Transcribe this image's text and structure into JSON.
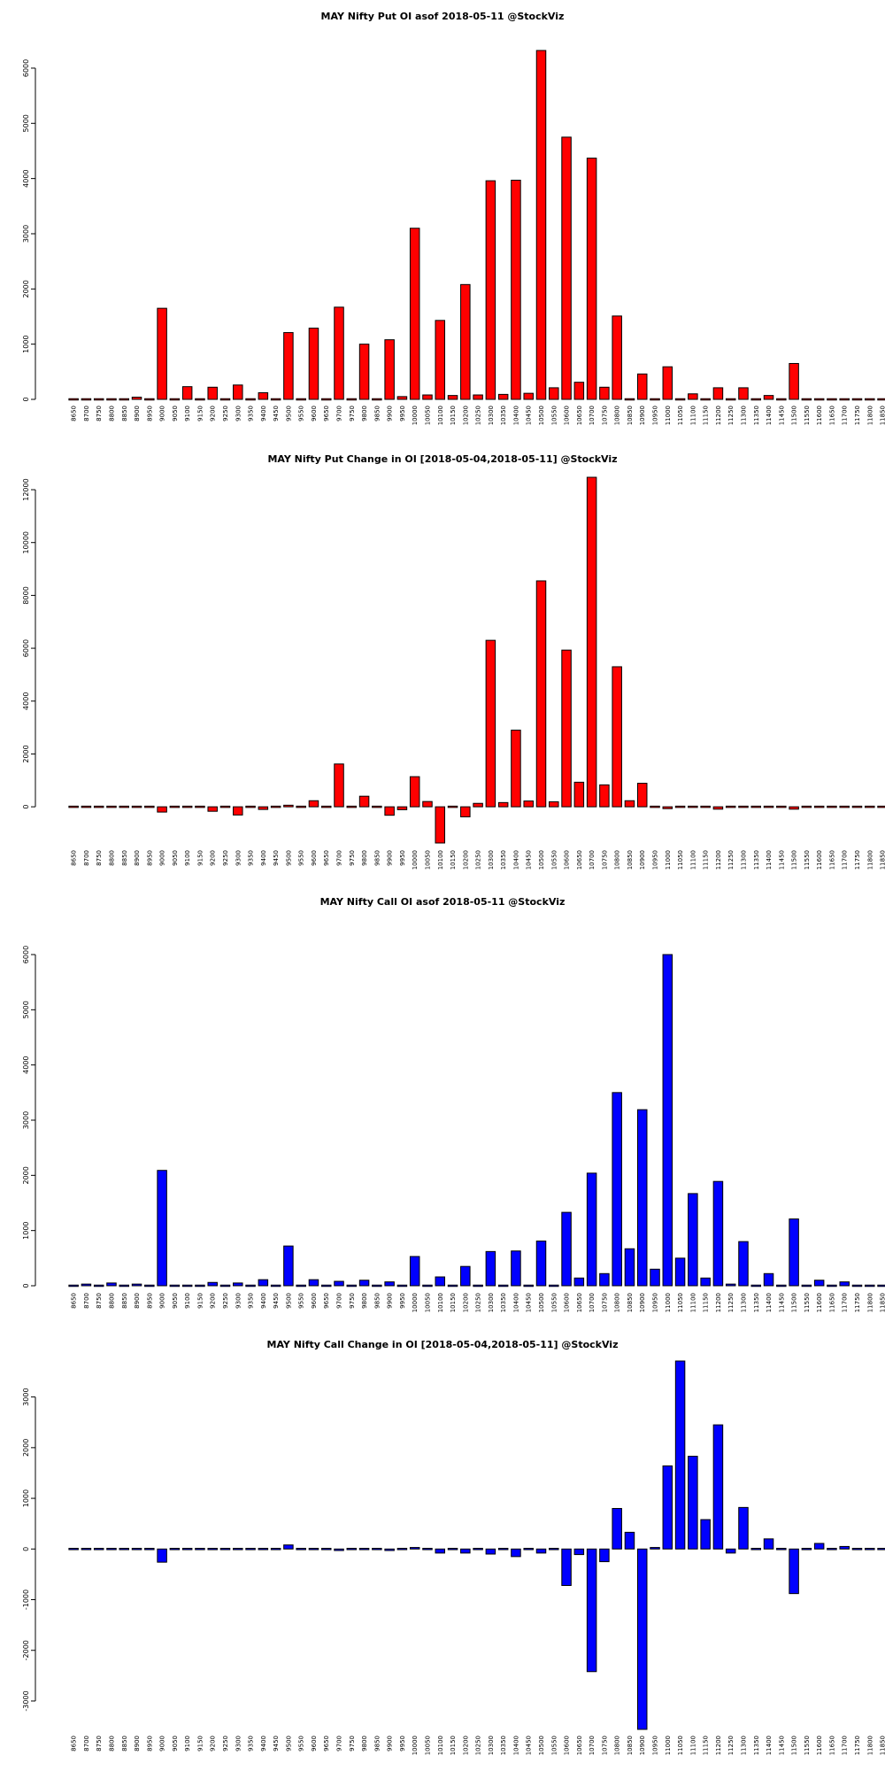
{
  "chart_data": [
    {
      "type": "bar",
      "title": "MAY Nifty Put OI asof 2018-05-11 @StockViz",
      "color": "#ff0000",
      "categories": [
        "8650",
        "8700",
        "8750",
        "8800",
        "8850",
        "8900",
        "8950",
        "9000",
        "9050",
        "9100",
        "9150",
        "9200",
        "9250",
        "9300",
        "9350",
        "9400",
        "9450",
        "9500",
        "9550",
        "9600",
        "9650",
        "9700",
        "9750",
        "9800",
        "9850",
        "9900",
        "9950",
        "10000",
        "10050",
        "10100",
        "10150",
        "10200",
        "10250",
        "10300",
        "10350",
        "10400",
        "10450",
        "10500",
        "10550",
        "10600",
        "10650",
        "10700",
        "10750",
        "10800",
        "10850",
        "10900",
        "10950",
        "11000",
        "11050",
        "11100",
        "11150",
        "11200",
        "11250",
        "11300",
        "11350",
        "11400",
        "11450",
        "11500",
        "11550",
        "11600",
        "11650",
        "11700",
        "11750",
        "11800",
        "11850"
      ],
      "x_tick_labels": [
        "8650",
        "8700",
        "8750",
        "8800",
        "8850",
        "8900",
        "8950",
        "9000",
        "9050",
        "9100",
        "9150",
        "9200",
        "9250",
        "9300",
        "9350",
        "9400",
        "9450",
        "9500",
        "9550",
        "9600",
        "9650",
        "9700",
        "9750",
        "9800",
        "9850",
        "9900",
        "9950",
        "10000",
        "10050",
        "10100",
        "10150",
        "10200",
        "10250",
        "10300",
        "10350",
        "10400",
        "10450",
        "10500",
        "10550",
        "10600",
        "10650",
        "10700",
        "10750",
        "10800",
        "10850",
        "10900",
        "10950",
        "11000",
        "11050",
        "11100",
        "11150",
        "11200",
        "11250",
        "11300",
        "11350",
        "11400",
        "11450",
        "11500",
        "11550",
        "11600",
        "11650",
        "11700",
        "11750",
        "11800",
        "11850"
      ],
      "values": [
        0,
        0,
        0,
        20,
        0,
        40,
        0,
        1650,
        0,
        230,
        0,
        220,
        0,
        260,
        0,
        120,
        0,
        1210,
        0,
        1290,
        0,
        1670,
        0,
        1000,
        0,
        1080,
        50,
        3100,
        80,
        1430,
        70,
        2080,
        80,
        3960,
        90,
        3970,
        110,
        6320,
        210,
        4750,
        310,
        4370,
        220,
        1510,
        20,
        460,
        20,
        590,
        0,
        100,
        0,
        210,
        0,
        210,
        0,
        70,
        0,
        650,
        0,
        0,
        0,
        0,
        0,
        0,
        0
      ],
      "yticks": [
        0,
        1000,
        2000,
        3000,
        4000,
        5000,
        6000
      ],
      "ylim": [
        0,
        6320
      ]
    },
    {
      "type": "bar",
      "title": "MAY Nifty Put Change in OI [2018-05-04,2018-05-11] @StockViz",
      "color": "#ff0000",
      "categories": [
        "8650",
        "8700",
        "8750",
        "8800",
        "8850",
        "8900",
        "8950",
        "9000",
        "9050",
        "9100",
        "9150",
        "9200",
        "9250",
        "9300",
        "9350",
        "9400",
        "9450",
        "9500",
        "9550",
        "9600",
        "9650",
        "9700",
        "9750",
        "9800",
        "9850",
        "9900",
        "9950",
        "10000",
        "10050",
        "10100",
        "10150",
        "10200",
        "10250",
        "10300",
        "10350",
        "10400",
        "10450",
        "10500",
        "10550",
        "10600",
        "10650",
        "10700",
        "10750",
        "10800",
        "10850",
        "10900",
        "10950",
        "11000",
        "11050",
        "11100",
        "11150",
        "11200",
        "11250",
        "11300",
        "11350",
        "11400",
        "11450",
        "11500",
        "11550",
        "11600",
        "11650",
        "11700",
        "11750",
        "11800",
        "11850"
      ],
      "x_tick_labels": [
        "8650",
        "8700",
        "8750",
        "8800",
        "8850",
        "8900",
        "8950",
        "9000",
        "9050",
        "9100",
        "9150",
        "9200",
        "9250",
        "9300",
        "9350",
        "9400",
        "9450",
        "9500",
        "9550",
        "9600",
        "9650",
        "9700",
        "9750",
        "9800",
        "9850",
        "9900",
        "9950",
        "10000",
        "10050",
        "10100",
        "10150",
        "10200",
        "10250",
        "10300",
        "10350",
        "10400",
        "10450",
        "10500",
        "10550",
        "10600",
        "10650",
        "10700",
        "10750",
        "10800",
        "10850",
        "10900",
        "10950",
        "11000",
        "11050",
        "11100",
        "11150",
        "11200",
        "11250",
        "11300",
        "11350",
        "11400",
        "11450",
        "11500",
        "11550",
        "11600",
        "11650",
        "11700",
        "11750",
        "11800",
        "11850"
      ],
      "values": [
        0,
        0,
        0,
        0,
        0,
        0,
        0,
        -200,
        0,
        0,
        0,
        -170,
        0,
        -310,
        0,
        -100,
        0,
        60,
        0,
        230,
        0,
        1620,
        0,
        400,
        0,
        -320,
        -110,
        1140,
        200,
        -1370,
        0,
        -380,
        130,
        6300,
        160,
        2900,
        220,
        8550,
        190,
        5930,
        930,
        12470,
        830,
        5300,
        230,
        890,
        0,
        -70,
        40,
        0,
        0,
        -90,
        0,
        0,
        0,
        0,
        0,
        -90,
        0,
        0,
        0,
        0,
        0,
        0,
        0
      ],
      "yticks": [
        0,
        2000,
        4000,
        6000,
        8000,
        10000,
        12000
      ],
      "ylim": [
        -1370,
        12470
      ]
    },
    {
      "type": "bar",
      "title": "MAY Nifty Call OI asof 2018-05-11 @StockViz",
      "color": "#0000ff",
      "categories": [
        "8650",
        "8700",
        "8750",
        "8800",
        "8850",
        "8900",
        "8950",
        "9000",
        "9050",
        "9100",
        "9150",
        "9200",
        "9250",
        "9300",
        "9350",
        "9400",
        "9450",
        "9500",
        "9550",
        "9600",
        "9650",
        "9700",
        "9750",
        "9800",
        "9850",
        "9900",
        "9950",
        "10000",
        "10050",
        "10100",
        "10150",
        "10200",
        "10250",
        "10300",
        "10350",
        "10400",
        "10450",
        "10500",
        "10550",
        "10600",
        "10650",
        "10700",
        "10750",
        "10800",
        "10850",
        "10900",
        "10950",
        "11000",
        "11050",
        "11100",
        "11150",
        "11200",
        "11250",
        "11300",
        "11350",
        "11400",
        "11450",
        "11500",
        "11550",
        "11600",
        "11650",
        "11700",
        "11750",
        "11800",
        "11850"
      ],
      "x_tick_labels": [
        "8650",
        "8700",
        "8750",
        "8800",
        "8850",
        "8900",
        "8950",
        "9000",
        "9050",
        "9100",
        "9150",
        "9200",
        "9250",
        "9300",
        "9350",
        "9400",
        "9450",
        "9500",
        "9550",
        "9600",
        "9650",
        "9700",
        "9750",
        "9800",
        "9850",
        "9900",
        "9950",
        "10000",
        "10050",
        "10100",
        "10150",
        "10200",
        "10250",
        "10300",
        "10350",
        "10400",
        "10450",
        "10500",
        "10550",
        "10600",
        "10650",
        "10700",
        "10750",
        "10800",
        "10850",
        "10900",
        "10950",
        "11000",
        "11050",
        "11100",
        "11150",
        "11200",
        "11250",
        "11300",
        "11350",
        "11400",
        "11450",
        "11500",
        "11550",
        "11600",
        "11650",
        "11700",
        "11750",
        "11800",
        "11850"
      ],
      "values": [
        0,
        30,
        0,
        50,
        0,
        30,
        0,
        2090,
        0,
        20,
        0,
        60,
        0,
        50,
        0,
        110,
        0,
        720,
        0,
        110,
        0,
        80,
        0,
        100,
        0,
        70,
        0,
        530,
        0,
        160,
        0,
        350,
        0,
        620,
        0,
        630,
        0,
        810,
        0,
        1330,
        140,
        2040,
        220,
        3500,
        670,
        3190,
        300,
        6000,
        500,
        1670,
        140,
        1890,
        30,
        800,
        0,
        220,
        0,
        1210,
        0,
        100,
        0,
        70,
        0,
        20,
        0
      ],
      "yticks": [
        0,
        1000,
        2000,
        3000,
        4000,
        5000,
        6000
      ],
      "ylim": [
        0,
        6000
      ]
    },
    {
      "type": "bar",
      "title": "MAY Nifty Call Change in OI [2018-05-04,2018-05-11] @StockViz",
      "color": "#0000ff",
      "categories": [
        "8650",
        "8700",
        "8750",
        "8800",
        "8850",
        "8900",
        "8950",
        "9000",
        "9050",
        "9100",
        "9150",
        "9200",
        "9250",
        "9300",
        "9350",
        "9400",
        "9450",
        "9500",
        "9550",
        "9600",
        "9650",
        "9700",
        "9750",
        "9800",
        "9850",
        "9900",
        "9950",
        "10000",
        "10050",
        "10100",
        "10150",
        "10200",
        "10250",
        "10300",
        "10350",
        "10400",
        "10450",
        "10500",
        "10550",
        "10600",
        "10650",
        "10700",
        "10750",
        "10800",
        "10850",
        "10900",
        "10950",
        "11000",
        "11050",
        "11100",
        "11150",
        "11200",
        "11250",
        "11300",
        "11350",
        "11400",
        "11450",
        "11500",
        "11550",
        "11600",
        "11650",
        "11700",
        "11750",
        "11800",
        "11850"
      ],
      "x_tick_labels": [
        "8650",
        "8700",
        "8750",
        "8800",
        "8850",
        "8900",
        "8950",
        "9000",
        "9050",
        "9100",
        "9150",
        "9200",
        "9250",
        "9300",
        "9350",
        "9400",
        "9450",
        "9500",
        "9550",
        "9600",
        "9650",
        "9700",
        "9750",
        "9800",
        "9850",
        "9900",
        "9950",
        "10000",
        "10050",
        "10100",
        "10150",
        "10200",
        "10250",
        "10300",
        "10350",
        "10400",
        "10450",
        "10500",
        "10550",
        "10600",
        "10650",
        "10700",
        "10750",
        "10800",
        "10850",
        "10900",
        "10950",
        "11000",
        "11050",
        "11100",
        "11150",
        "11200",
        "11250",
        "11300",
        "11350",
        "11400",
        "11450",
        "11500",
        "11550",
        "11600",
        "11650",
        "11700",
        "11750",
        "11800",
        "11850"
      ],
      "values": [
        0,
        0,
        0,
        0,
        0,
        0,
        0,
        -260,
        0,
        0,
        0,
        0,
        0,
        0,
        0,
        0,
        0,
        80,
        0,
        0,
        0,
        -30,
        0,
        0,
        0,
        -30,
        0,
        30,
        0,
        -80,
        0,
        -80,
        0,
        -100,
        0,
        -150,
        0,
        -80,
        -20,
        -720,
        -110,
        -2420,
        -250,
        800,
        330,
        -3560,
        30,
        1640,
        3710,
        1830,
        580,
        2450,
        -80,
        820,
        0,
        200,
        0,
        -880,
        0,
        110,
        0,
        50,
        0,
        0,
        0
      ],
      "yticks": [
        -3000,
        -2000,
        -1000,
        0,
        1000,
        2000,
        3000
      ],
      "ylim": [
        -3560,
        3710
      ]
    }
  ]
}
